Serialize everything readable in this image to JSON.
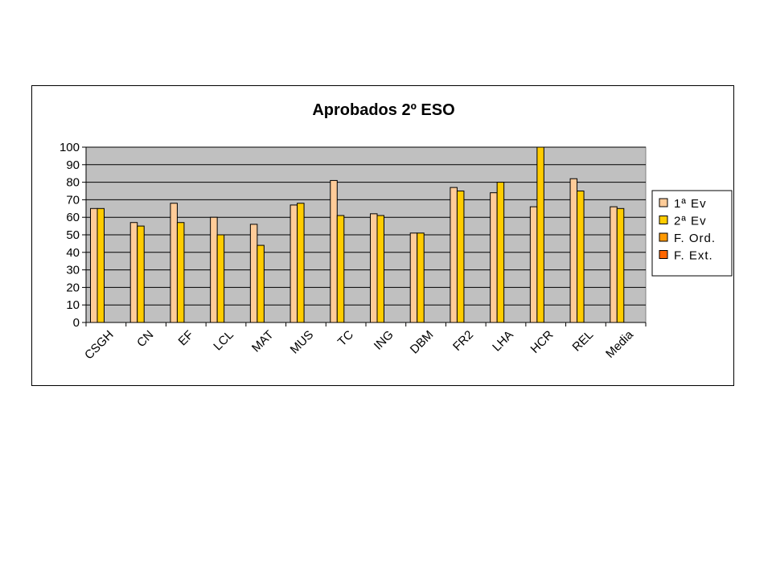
{
  "chart_data": {
    "type": "bar",
    "title": "Aprobados 2º ESO",
    "xlabel": "",
    "ylabel": "",
    "ylim": [
      0,
      100
    ],
    "yticks": [
      0,
      10,
      20,
      30,
      40,
      50,
      60,
      70,
      80,
      90,
      100
    ],
    "grid": true,
    "legend_position": "right",
    "categories": [
      "CSGH",
      "CN",
      "EF",
      "LCL",
      "MAT",
      "MUS",
      "TC",
      "ING",
      "DBM",
      "FR2",
      "LHA",
      "HCR",
      "REL",
      "Media"
    ],
    "series": [
      {
        "name": "1ª Ev",
        "color": "#ffcc99",
        "values": [
          65,
          57,
          68,
          60,
          56,
          67,
          81,
          62,
          51,
          77,
          74,
          66,
          82,
          66
        ]
      },
      {
        "name": "2ª Ev",
        "color": "#ffcc00",
        "values": [
          65,
          55,
          57,
          50,
          44,
          68,
          61,
          61,
          51,
          75,
          80,
          100,
          75,
          65
        ]
      },
      {
        "name": "F. Ord.",
        "color": "#ff9900",
        "values": [
          null,
          null,
          null,
          null,
          null,
          null,
          null,
          null,
          null,
          null,
          null,
          null,
          null,
          null
        ]
      },
      {
        "name": "F. Ext.",
        "color": "#ff6600",
        "values": [
          null,
          null,
          null,
          null,
          null,
          null,
          null,
          null,
          null,
          null,
          null,
          null,
          null,
          null
        ]
      }
    ],
    "plot_background": "#c0c0c0"
  }
}
